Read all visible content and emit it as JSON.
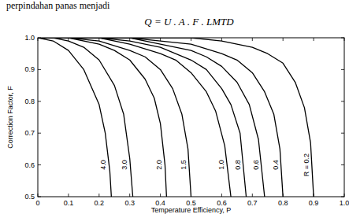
{
  "chart_data": {
    "type": "line",
    "annotations": [
      "perpindahan panas menjadi",
      "Q = U . A . F . LMTD"
    ],
    "x_label": "Temperature Efficiency, P",
    "y_label": "Correction Factor, F",
    "color": "#000000",
    "grid": false,
    "xlim": [
      0,
      1
    ],
    "ylim": [
      0.5,
      1
    ],
    "xticks": [
      0,
      0.1,
      0.2,
      0.3,
      0.4,
      0.5,
      0.6,
      0.7,
      0.8,
      0.9,
      {
        "value": 1,
        "label": "1.0"
      }
    ],
    "yticks": [
      {
        "value": 0.5,
        "label": "0.5"
      },
      {
        "value": 0.6,
        "label": "0.6"
      },
      {
        "value": 0.7,
        "label": "0.7"
      },
      {
        "value": 0.8,
        "label": "0.8"
      },
      {
        "value": 0.9,
        "label": "0.9"
      },
      {
        "value": 1,
        "label": "1.0"
      }
    ],
    "series": [
      {
        "name": "4.0",
        "x": [
          0,
          0.05,
          0.1,
          0.15,
          0.2,
          0.22,
          0.235,
          0.24
        ],
        "values": [
          1,
          0.99,
          0.96,
          0.9,
          0.79,
          0.7,
          0.58,
          0.5
        ]
      },
      {
        "name": "3.0",
        "x": [
          0,
          0.05,
          0.1,
          0.15,
          0.2,
          0.25,
          0.28,
          0.3,
          0.31
        ],
        "values": [
          1,
          1,
          0.99,
          0.97,
          0.93,
          0.85,
          0.76,
          0.62,
          0.5
        ]
      },
      {
        "name": "2.0",
        "x": [
          0,
          0.1,
          0.2,
          0.25,
          0.3,
          0.35,
          0.38,
          0.4,
          0.415,
          0.42
        ],
        "values": [
          1,
          1,
          0.98,
          0.96,
          0.93,
          0.87,
          0.81,
          0.73,
          0.6,
          0.5
        ]
      },
      {
        "name": "1.5",
        "x": [
          0,
          0.1,
          0.2,
          0.3,
          0.35,
          0.4,
          0.44,
          0.47,
          0.49,
          0.5
        ],
        "values": [
          1,
          1,
          0.99,
          0.96,
          0.94,
          0.9,
          0.84,
          0.76,
          0.65,
          0.5
        ]
      },
      {
        "name": "1.0",
        "x": [
          0,
          0.1,
          0.2,
          0.3,
          0.4,
          0.45,
          0.5,
          0.55,
          0.58,
          0.61,
          0.63
        ],
        "values": [
          1,
          1,
          1,
          0.98,
          0.95,
          0.93,
          0.89,
          0.83,
          0.77,
          0.66,
          0.5
        ]
      },
      {
        "name": "0.8",
        "x": [
          0,
          0.2,
          0.3,
          0.4,
          0.5,
          0.55,
          0.6,
          0.63,
          0.66,
          0.68
        ],
        "values": [
          1,
          1,
          0.99,
          0.97,
          0.93,
          0.9,
          0.84,
          0.79,
          0.7,
          0.5
        ]
      },
      {
        "name": "0.6",
        "x": [
          0,
          0.2,
          0.3,
          0.4,
          0.5,
          0.55,
          0.6,
          0.65,
          0.69,
          0.72,
          0.74
        ],
        "values": [
          1,
          1,
          1,
          0.98,
          0.96,
          0.94,
          0.91,
          0.86,
          0.79,
          0.68,
          0.5
        ]
      },
      {
        "name": "0.4",
        "x": [
          0,
          0.3,
          0.4,
          0.5,
          0.6,
          0.65,
          0.7,
          0.74,
          0.77,
          0.79,
          0.8
        ],
        "values": [
          1,
          1,
          0.99,
          0.98,
          0.95,
          0.93,
          0.89,
          0.83,
          0.76,
          0.65,
          0.5
        ]
      },
      {
        "name": "R = 0.2",
        "x": [
          0,
          0.4,
          0.5,
          0.6,
          0.7,
          0.75,
          0.8,
          0.84,
          0.87,
          0.89,
          0.9
        ],
        "values": [
          1,
          1,
          1,
          0.99,
          0.97,
          0.95,
          0.92,
          0.86,
          0.78,
          0.67,
          0.5
        ]
      }
    ]
  }
}
